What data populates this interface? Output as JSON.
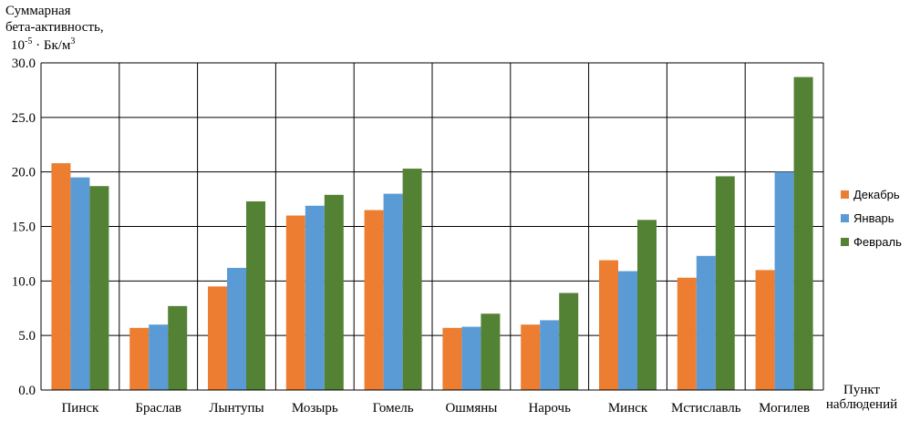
{
  "chart_data": {
    "type": "bar",
    "ylabel": [
      "Суммарная",
      "бета-активность,",
      "10",
      "-5",
      " · Бк/м",
      "3"
    ],
    "xlabel": [
      "Пункт",
      "наблюдений"
    ],
    "ylim": [
      0,
      30
    ],
    "yticks": [
      "0.0",
      "5.0",
      "10.0",
      "15.0",
      "20.0",
      "25.0",
      "30.0"
    ],
    "grid": true,
    "legend_position": "right",
    "categories": [
      "Пинск",
      "Браслав",
      "Лынтупы",
      "Мозырь",
      "Гомель",
      "Ошмяны",
      "Нарочь",
      "Минск",
      "Мстиславль",
      "Могилев"
    ],
    "series": [
      {
        "name": "Декабрь",
        "color": "#ED7D31",
        "values": [
          20.8,
          5.7,
          9.5,
          16.0,
          16.5,
          5.7,
          6.0,
          11.9,
          10.3,
          11.0
        ]
      },
      {
        "name": "Январь",
        "color": "#5B9BD5",
        "values": [
          19.5,
          6.0,
          11.2,
          16.9,
          18.0,
          5.8,
          6.4,
          10.9,
          12.3,
          20.0
        ]
      },
      {
        "name": "Февраль",
        "color": "#548235",
        "values": [
          18.7,
          7.7,
          17.3,
          17.9,
          20.3,
          7.0,
          8.9,
          15.6,
          19.6,
          28.7
        ]
      }
    ]
  }
}
